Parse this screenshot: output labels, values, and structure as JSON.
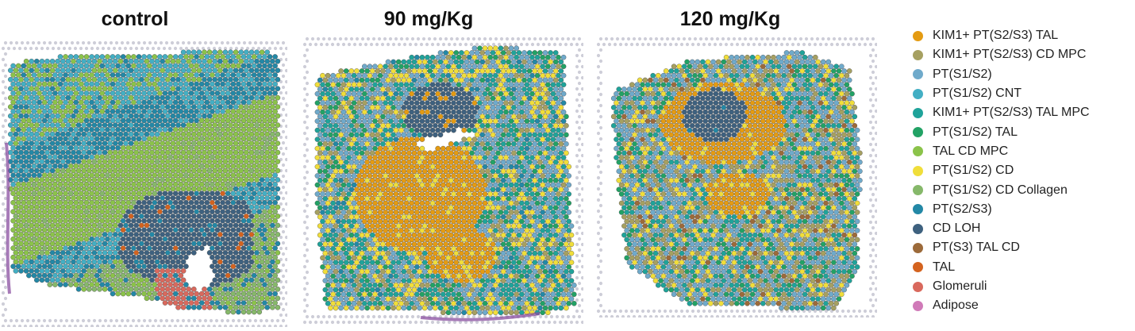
{
  "panels": [
    {
      "title": "control"
    },
    {
      "title": "90 mg/Kg"
    },
    {
      "title": "120 mg/Kg"
    }
  ],
  "legend": [
    {
      "label": "KIM1+ PT(S2/S3) TAL",
      "color": "#E49B12"
    },
    {
      "label": "KIM1+ PT(S2/S3) CD MPC",
      "color": "#A6A061"
    },
    {
      "label": "PT(S1/S2)",
      "color": "#6FAACB"
    },
    {
      "label": "PT(S1/S2) CNT",
      "color": "#43AFC4"
    },
    {
      "label": "KIM1+ PT(S2/S3) TAL MPC",
      "color": "#1FA39A"
    },
    {
      "label": "PT(S1/S2) TAL",
      "color": "#22A265"
    },
    {
      "label": "TAL CD MPC",
      "color": "#8BC34A"
    },
    {
      "label": "PT(S1/S2) CD",
      "color": "#F0DE3A"
    },
    {
      "label": "PT(S1/S2) CD Collagen",
      "color": "#86B86A"
    },
    {
      "label": "PT(S2/S3)",
      "color": "#2388A6"
    },
    {
      "label": "CD LOH",
      "color": "#3E617F"
    },
    {
      "label": "PT(S3) TAL CD",
      "color": "#9C6A3A"
    },
    {
      "label": "TAL",
      "color": "#D4631F"
    },
    {
      "label": "Glomeruli",
      "color": "#D9695D"
    },
    {
      "label": "Adipose",
      "color": "#D07AB8"
    }
  ]
}
